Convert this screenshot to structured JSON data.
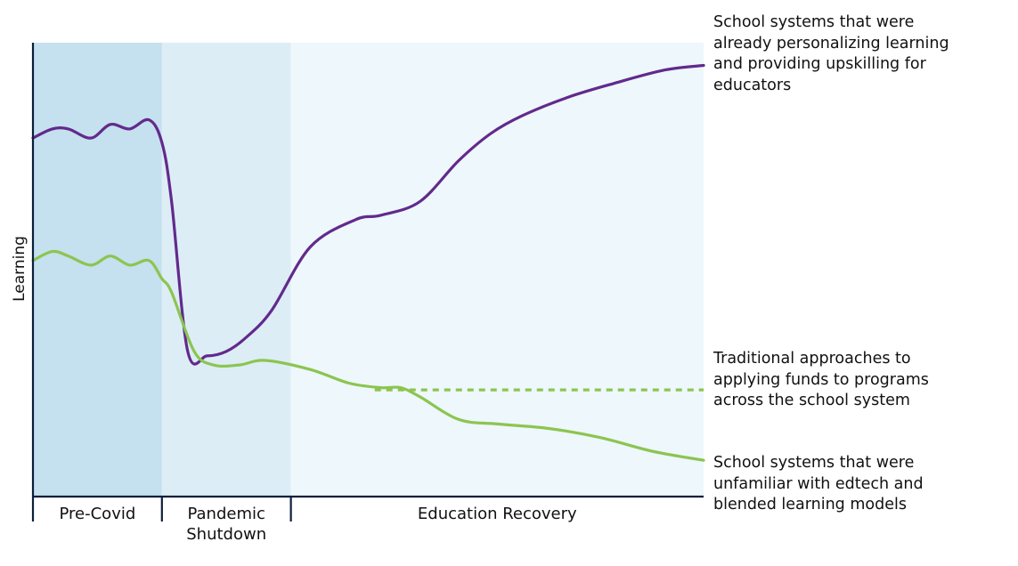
{
  "chart_data": {
    "type": "line",
    "xlabel": "",
    "ylabel": "Learning",
    "grid": false,
    "legend": "none",
    "phases": [
      {
        "label_lines": [
          "Pre-Covid"
        ],
        "x_range": [
          0,
          2
        ],
        "color": "#c5e0ee"
      },
      {
        "label_lines": [
          "Pandemic",
          "Shutdown"
        ],
        "x_range": [
          2,
          4
        ],
        "color": "#ddedf6"
      },
      {
        "label_lines": [
          "Education Recovery"
        ],
        "x_range": [
          4,
          10.4
        ],
        "color": "#eef7fb"
      }
    ],
    "xlim": [
      0,
      10.4
    ],
    "ylim": [
      0,
      100
    ],
    "series": [
      {
        "color": "#622a8c",
        "style": "solid",
        "annotation_lines": [
          "School systems that were",
          "already personalizing learning",
          "and providing upskilling for",
          "educators"
        ],
        "x": [
          0,
          0.3,
          0.55,
          0.9,
          1.2,
          1.5,
          1.8,
          2.0,
          2.15,
          2.4,
          2.7,
          3.0,
          3.3,
          3.7,
          4.3,
          5.0,
          5.4,
          6.0,
          6.6,
          7.1,
          7.6,
          8.3,
          9.0,
          9.8,
          10.4
        ],
        "y": [
          79,
          81,
          81,
          79,
          82,
          81,
          83,
          78,
          65,
          32,
          31,
          32,
          35,
          41,
          55,
          61,
          62,
          65,
          74,
          80,
          84,
          88,
          91,
          94,
          95
        ]
      },
      {
        "color": "#8bc550",
        "style": "solid",
        "annotation_lines": [
          "School systems that were",
          "unfamiliar with edtech and",
          "blended learning models"
        ],
        "x": [
          0,
          0.3,
          0.55,
          0.9,
          1.2,
          1.5,
          1.8,
          2.0,
          2.15,
          2.5,
          2.8,
          3.2,
          3.6,
          4.3,
          4.9,
          5.4,
          5.7,
          6.0,
          6.6,
          7.2,
          8.0,
          8.8,
          9.6,
          10.4
        ],
        "y": [
          52,
          54,
          53,
          51,
          53,
          51,
          52,
          48,
          45,
          32,
          29,
          29,
          30,
          28,
          25,
          24,
          24,
          22,
          17,
          16,
          15,
          13,
          10,
          8
        ]
      },
      {
        "color": "#8bc550",
        "style": "dashed",
        "annotation_lines": [
          "Traditional approaches to",
          "applying funds to programs",
          "across the school system"
        ],
        "x": [
          5.3,
          10.4
        ],
        "y": [
          23.5,
          23.5
        ]
      }
    ]
  }
}
